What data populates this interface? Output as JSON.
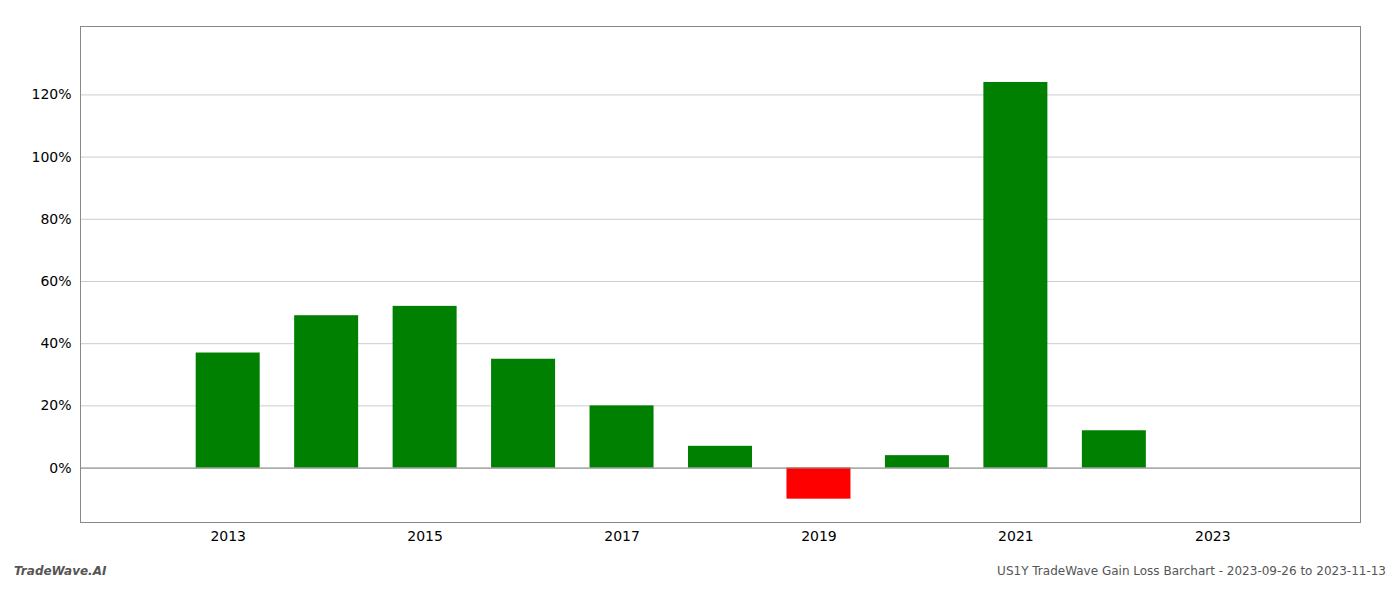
{
  "chart_data": {
    "type": "bar",
    "x": [
      2013,
      2014,
      2015,
      2016,
      2017,
      2018,
      2019,
      2020,
      2021,
      2022,
      2023
    ],
    "values": [
      0.37,
      0.49,
      0.52,
      0.35,
      0.2,
      0.07,
      -0.1,
      0.04,
      1.24,
      0.12,
      null
    ],
    "colors": [
      "#008000",
      "#008000",
      "#008000",
      "#008000",
      "#008000",
      "#008000",
      "#ff0000",
      "#008000",
      "#008000",
      "#008000",
      null
    ],
    "xlim": [
      2011.5,
      2024.5
    ],
    "xticks": [
      2013,
      2015,
      2017,
      2019,
      2021,
      2023
    ],
    "ylim": [
      -0.175,
      1.42
    ],
    "yticks": [
      {
        "value": 0.0,
        "label": "0%"
      },
      {
        "value": 0.2,
        "label": "20%"
      },
      {
        "value": 0.4,
        "label": "40%"
      },
      {
        "value": 0.6,
        "label": "60%"
      },
      {
        "value": 0.8,
        "label": "80%"
      },
      {
        "value": 1.0,
        "label": "100%"
      },
      {
        "value": 1.2,
        "label": "120%"
      }
    ],
    "grid": true,
    "annotations": [
      "TradeWave.AI",
      "US1Y TradeWave Gain Loss Barchart - 2023-09-26 to 2023-11-13"
    ]
  }
}
